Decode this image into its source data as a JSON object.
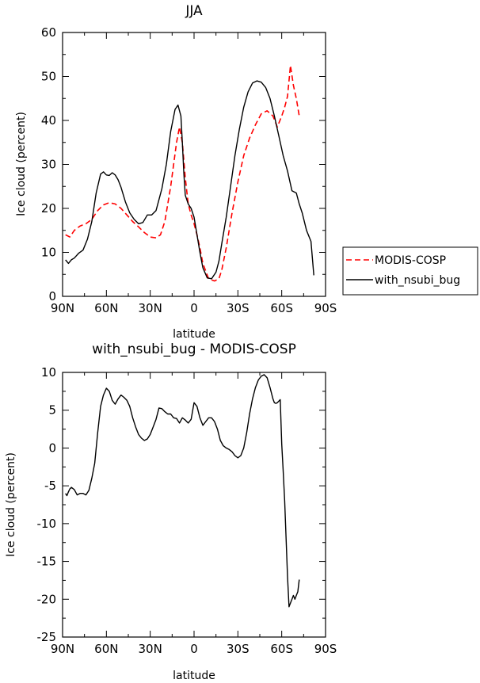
{
  "chart_data": [
    {
      "type": "line",
      "title": "JJA",
      "xlabel": "latitude",
      "ylabel": "Ice cloud (percent)",
      "xlim": [
        90,
        -90
      ],
      "ylim": [
        0,
        60
      ],
      "xticks": [
        90,
        60,
        30,
        0,
        -30,
        -60,
        -90
      ],
      "xticklabels": [
        "90N",
        "60N",
        "30N",
        "0",
        "30S",
        "60S",
        "90S"
      ],
      "yticks": [
        0,
        10,
        20,
        30,
        40,
        50,
        60
      ],
      "yticklabels": [
        "0",
        "10",
        "20",
        "30",
        "40",
        "50",
        "60"
      ],
      "legend_position": "right",
      "series": [
        {
          "name": "MODIS-COSP",
          "color": "#ff0000",
          "dash": "dashed",
          "x": [
            88,
            85,
            82,
            78,
            74,
            70,
            66,
            62,
            58,
            54,
            50,
            46,
            42,
            38,
            34,
            30,
            26,
            23,
            20,
            16,
            12,
            10,
            8,
            6,
            4,
            2,
            0,
            -2,
            -4,
            -6,
            -10,
            -14,
            -17,
            -19,
            -22,
            -26,
            -30,
            -34,
            -38,
            -42,
            -46,
            -50,
            -54,
            -57,
            -60,
            -62,
            -64,
            -66,
            -68,
            -70,
            -72
          ],
          "y": [
            14,
            13.5,
            15,
            16,
            16.5,
            17.5,
            19.5,
            20.8,
            21.3,
            21,
            20,
            18.5,
            17,
            15.8,
            14.5,
            13.5,
            13.3,
            14,
            17,
            25,
            35,
            38.5,
            35,
            27,
            21,
            18.5,
            16.5,
            14,
            11,
            7.5,
            4,
            3.5,
            4,
            6,
            11,
            19,
            26,
            32,
            36,
            39,
            41.5,
            42.2,
            41,
            38.5,
            41,
            43,
            45.5,
            52.5,
            48,
            45,
            41
          ]
        },
        {
          "name": "with_nsubi_bug",
          "color": "#000000",
          "dash": "solid",
          "x": [
            88,
            86,
            84,
            82,
            79,
            76,
            73,
            70,
            67,
            64,
            62,
            60,
            58,
            56,
            54,
            52,
            50,
            47,
            44,
            41,
            38,
            35,
            32,
            29,
            26,
            24,
            22,
            19,
            16,
            13,
            11,
            9,
            8,
            7,
            6,
            4,
            2,
            0,
            -2,
            -4,
            -6,
            -9,
            -12,
            -15,
            -17,
            -19,
            -22,
            -25,
            -28,
            -31,
            -34,
            -37,
            -40,
            -43,
            -46,
            -49,
            -52,
            -55,
            -58,
            -61,
            -64,
            -67,
            -70,
            -72,
            -74,
            -77,
            -80,
            -82
          ],
          "y": [
            8.3,
            7.5,
            8.3,
            8.7,
            9.8,
            10.5,
            13,
            17,
            23.5,
            27.8,
            28.3,
            27.6,
            27.5,
            28.1,
            27.6,
            26.5,
            24.8,
            21.5,
            19,
            17.5,
            16.5,
            16.8,
            18.5,
            18.5,
            19.5,
            22,
            24.5,
            30,
            37.5,
            42.5,
            43.5,
            41,
            35,
            28,
            23,
            21,
            20,
            18,
            14,
            10,
            6.5,
            4.2,
            4,
            5.5,
            8,
            12,
            18,
            25,
            32,
            38,
            43,
            46.5,
            48.5,
            49,
            48.7,
            47.5,
            45,
            41,
            36.5,
            32,
            28.5,
            24,
            23.5,
            21,
            19,
            15,
            12.5,
            4.8
          ]
        }
      ]
    },
    {
      "type": "line",
      "title": "with_nsubi_bug - MODIS-COSP",
      "xlabel": "latitude",
      "ylabel": "Ice cloud (percent)",
      "xlim": [
        90,
        -90
      ],
      "ylim": [
        -25,
        10
      ],
      "xticks": [
        90,
        60,
        30,
        0,
        -30,
        -60,
        -90
      ],
      "xticklabels": [
        "90N",
        "60N",
        "30N",
        "0",
        "30S",
        "60S",
        "90S"
      ],
      "yticks": [
        -25,
        -20,
        -15,
        -10,
        -5,
        0,
        5,
        10
      ],
      "yticklabels": [
        "-25",
        "-20",
        "-15",
        "-10",
        "-5",
        "0",
        "5",
        "10"
      ],
      "series": [
        {
          "color": "#000000",
          "dash": "solid",
          "x": [
            88,
            87,
            86,
            85,
            84,
            82,
            80,
            78,
            76,
            74,
            72,
            70,
            68,
            66,
            64,
            62,
            60,
            58,
            56,
            54,
            52,
            50,
            48,
            46,
            44,
            42,
            40,
            38,
            36,
            34,
            32,
            30,
            28,
            26,
            24,
            22,
            20,
            18,
            16,
            14,
            12,
            10,
            8,
            6,
            4,
            2,
            0,
            -2,
            -4,
            -6,
            -8,
            -10,
            -12,
            -14,
            -16,
            -18,
            -20,
            -22,
            -24,
            -26,
            -28,
            -30,
            -32,
            -34,
            -36,
            -38,
            -40,
            -42,
            -44,
            -46,
            -48,
            -50,
            -52,
            -54,
            -55,
            -56,
            -57,
            -58,
            -59,
            -60,
            -61,
            -62,
            -63,
            -64,
            -65,
            -66,
            -67,
            -68,
            -69,
            -70,
            -71,
            -72
          ],
          "y": [
            -6,
            -6.3,
            -5.8,
            -5.4,
            -5.2,
            -5.5,
            -6.2,
            -6,
            -6,
            -6.2,
            -5.6,
            -4,
            -2,
            2,
            5.5,
            7,
            7.9,
            7.5,
            6.3,
            5.8,
            6.5,
            7,
            6.7,
            6.3,
            5.5,
            4,
            2.8,
            1.8,
            1.3,
            1,
            1.2,
            1.8,
            2.8,
            3.8,
            5.3,
            5.2,
            4.8,
            4.5,
            4.5,
            4,
            3.9,
            3.3,
            4,
            3.7,
            3.3,
            3.8,
            6,
            5.5,
            4,
            3,
            3.5,
            4,
            4,
            3.5,
            2.5,
            1,
            0.3,
            0,
            -0.2,
            -0.5,
            -1,
            -1.3,
            -1,
            0,
            2,
            4.5,
            6.5,
            8,
            9,
            9.5,
            9.7,
            9.3,
            8,
            6.5,
            6,
            5.9,
            6,
            6.2,
            6.4,
            0.5,
            -3,
            -7,
            -12,
            -17,
            -21,
            -20.5,
            -20,
            -19.5,
            -20,
            -19.5,
            -19,
            -17.4
          ]
        }
      ]
    }
  ]
}
